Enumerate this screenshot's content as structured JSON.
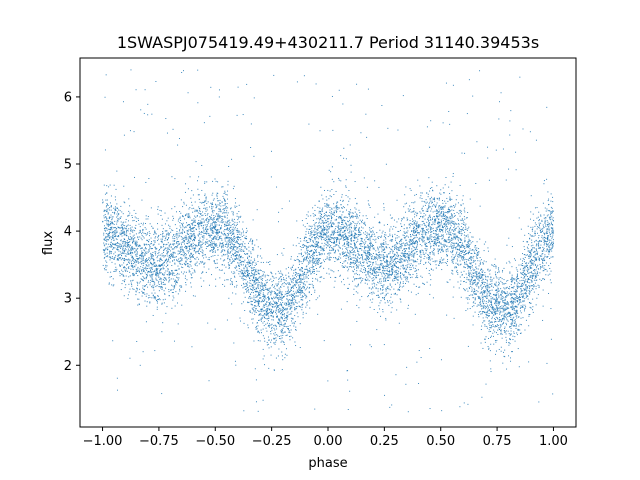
{
  "chart_data": {
    "type": "scatter",
    "title": "1SWASPJ075419.49+430211.7 Period 31140.39453s",
    "xlabel": "phase",
    "ylabel": "flux",
    "xlim": [
      -1.1,
      1.1
    ],
    "ylim": [
      1.08,
      6.58
    ],
    "xticks": [
      -1.0,
      -0.75,
      -0.5,
      -0.25,
      0.0,
      0.25,
      0.5,
      0.75,
      1.0
    ],
    "xtick_labels": [
      "−1.00",
      "−0.75",
      "−0.50",
      "−0.25",
      "0.00",
      "0.25",
      "0.50",
      "0.75",
      "1.00"
    ],
    "yticks": [
      2,
      3,
      4,
      5,
      6
    ],
    "ytick_labels": [
      "2",
      "3",
      "4",
      "5",
      "6"
    ],
    "grid": false,
    "legend": "none",
    "point_color": "#1f77b4",
    "series": [
      {
        "phase": [
          -1.0,
          -0.95,
          -0.9,
          -0.85,
          -0.8,
          -0.75,
          -0.7,
          -0.65,
          -0.6,
          -0.55,
          -0.5,
          -0.45,
          -0.4,
          -0.35,
          -0.3,
          -0.25,
          -0.2,
          -0.15,
          -0.1,
          -0.05,
          0.0,
          0.05,
          0.1,
          0.15,
          0.2,
          0.25,
          0.3,
          0.35,
          0.4,
          0.45,
          0.5,
          0.55,
          0.6,
          0.65,
          0.7,
          0.75,
          0.8,
          0.85,
          0.9,
          0.95,
          1.0
        ],
        "flux_mean": [
          4.0,
          3.92,
          3.78,
          3.63,
          3.52,
          3.5,
          3.58,
          3.75,
          3.92,
          4.02,
          4.05,
          3.98,
          3.75,
          3.35,
          2.98,
          2.85,
          2.88,
          3.05,
          3.45,
          3.85,
          4.02,
          3.98,
          3.85,
          3.68,
          3.55,
          3.5,
          3.55,
          3.72,
          3.9,
          4.02,
          4.05,
          3.98,
          3.75,
          3.35,
          3.0,
          2.86,
          2.88,
          3.05,
          3.45,
          3.85,
          4.0
        ],
        "flux_scatter": [
          0.3,
          0.3,
          0.3,
          0.3,
          0.3,
          0.3,
          0.3,
          0.3,
          0.3,
          0.3,
          0.3,
          0.3,
          0.3,
          0.3,
          0.3,
          0.3,
          0.3,
          0.3,
          0.3,
          0.3,
          0.3,
          0.3,
          0.3,
          0.3,
          0.3,
          0.3,
          0.3,
          0.3,
          0.3,
          0.3,
          0.3,
          0.3,
          0.3,
          0.3,
          0.3,
          0.3,
          0.3,
          0.3,
          0.3,
          0.3,
          0.3
        ],
        "outlier_range": [
          1.3,
          6.5
        ]
      }
    ]
  }
}
